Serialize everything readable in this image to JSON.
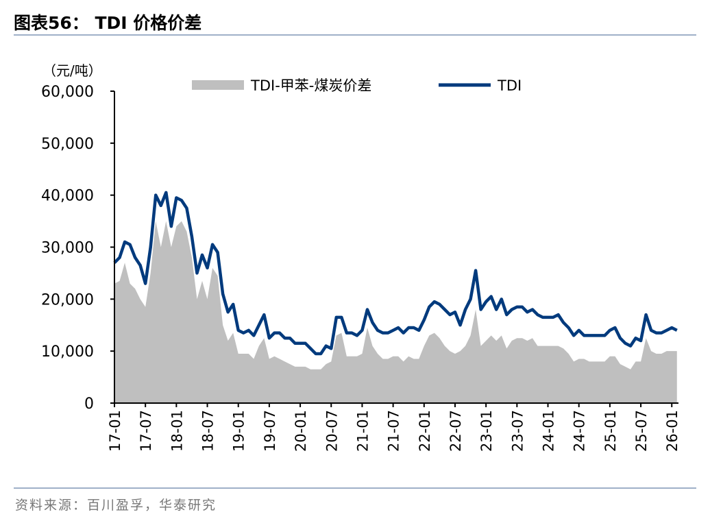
{
  "title": "图表56：  TDI 价格价差",
  "source": "资料来源：百川盈孚，华泰研究",
  "chart_data": {
    "type": "line+area",
    "unit_label": "（元/吨）",
    "ylim": [
      0,
      60000
    ],
    "yticks": [
      "0",
      "10,000",
      "20,000",
      "30,000",
      "40,000",
      "50,000",
      "60,000"
    ],
    "xticks": [
      "17-01",
      "17-07",
      "18-01",
      "18-07",
      "19-01",
      "19-07",
      "20-01",
      "20-07",
      "21-01",
      "21-07",
      "22-01",
      "22-07",
      "23-01",
      "23-07",
      "24-01",
      "24-07",
      "25-01",
      "25-07",
      "26-01"
    ],
    "legend_position": "top",
    "start_month": "2017-01",
    "series": [
      {
        "name": "TDI-甲苯-煤炭价差",
        "type": "area",
        "color": "#bfbfbf",
        "values": [
          23000,
          23500,
          27000,
          23000,
          22000,
          20000,
          18500,
          25000,
          35000,
          30000,
          35000,
          30000,
          34000,
          35000,
          33000,
          28000,
          20000,
          23500,
          20000,
          26000,
          24500,
          15000,
          12000,
          13500,
          9500,
          9500,
          9500,
          8500,
          11000,
          12500,
          8500,
          9000,
          8500,
          8000,
          7500,
          7000,
          7000,
          7000,
          6500,
          6500,
          6500,
          7500,
          8000,
          13000,
          13500,
          9000,
          9000,
          9000,
          9500,
          14500,
          11000,
          9500,
          8500,
          8500,
          9000,
          9000,
          8000,
          9000,
          8500,
          8500,
          11000,
          13000,
          13500,
          12500,
          11000,
          10000,
          9500,
          10000,
          11000,
          13000,
          18000,
          11000,
          12000,
          13000,
          12000,
          13000,
          10500,
          12000,
          12500,
          12500,
          12000,
          12500,
          11000,
          11000,
          11000,
          11000,
          11000,
          10500,
          9500,
          8000,
          8500,
          8500,
          8000,
          8000,
          8000,
          8000,
          9000,
          9000,
          7500,
          7000,
          6500,
          8000,
          8000,
          12500,
          10000,
          9500,
          9500,
          10000,
          10000,
          10000
        ]
      },
      {
        "name": "TDI",
        "type": "line",
        "color": "#003a7d",
        "values": [
          27000,
          28000,
          31000,
          30500,
          28000,
          26500,
          23000,
          30000,
          40000,
          38000,
          40500,
          34000,
          39500,
          39000,
          37500,
          32000,
          25000,
          28500,
          26000,
          30500,
          29000,
          21000,
          17500,
          19000,
          14000,
          13500,
          14000,
          13000,
          15000,
          17000,
          12500,
          13500,
          13500,
          12500,
          12500,
          11500,
          11500,
          11500,
          10500,
          9500,
          9500,
          11000,
          10500,
          16500,
          16500,
          13500,
          13500,
          13000,
          14000,
          18000,
          15500,
          14000,
          13500,
          13500,
          14000,
          14500,
          13500,
          14500,
          14500,
          14000,
          16000,
          18500,
          19500,
          19000,
          18000,
          17000,
          17500,
          15000,
          18000,
          20000,
          25500,
          18000,
          19500,
          20500,
          18000,
          20000,
          17000,
          18000,
          18500,
          18500,
          17500,
          18000,
          17000,
          16500,
          16500,
          16500,
          17000,
          15500,
          14500,
          13000,
          14000,
          13000,
          13000,
          13000,
          13000,
          13000,
          14000,
          14500,
          12500,
          11500,
          11000,
          12500,
          12000,
          17000,
          14000,
          13500,
          13500,
          14000,
          14500,
          14000
        ]
      }
    ]
  }
}
